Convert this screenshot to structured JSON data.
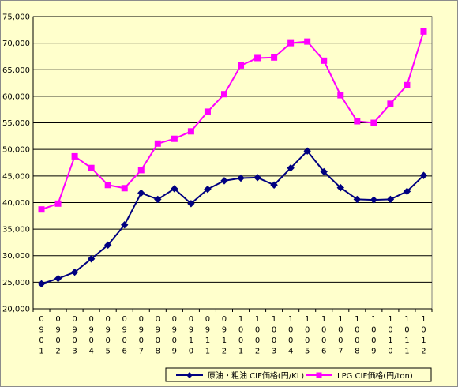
{
  "chart_data": {
    "type": "line",
    "title": "",
    "xlabel": "",
    "ylabel": "",
    "ylim": [
      20000,
      75000
    ],
    "ytick_step": 5000,
    "grid": true,
    "legend_placement": "bottom",
    "categories": [
      "0901",
      "0902",
      "0903",
      "0904",
      "0905",
      "0906",
      "0907",
      "0908",
      "0909",
      "0910",
      "0911",
      "0912",
      "1001",
      "1002",
      "1003",
      "1004",
      "1005",
      "1006",
      "1007",
      "1008",
      "1009",
      "1010",
      "1011",
      "1012"
    ],
    "series": [
      {
        "name": "原油・粗油 CIF価格(円/KL)",
        "color": "#000080",
        "marker": "diamond",
        "values": [
          24700,
          25700,
          26900,
          29400,
          32000,
          35800,
          41800,
          40600,
          42600,
          39800,
          42500,
          44100,
          44600,
          44700,
          43300,
          46500,
          49700,
          45800,
          42800,
          40600,
          40500,
          40600,
          42100,
          45100
        ]
      },
      {
        "name": "LPG CIF価格(円/ton)",
        "color": "#ff00ff",
        "marker": "square",
        "values": [
          38700,
          39800,
          48700,
          46500,
          43300,
          42700,
          46100,
          51100,
          52000,
          53400,
          57100,
          60400,
          65800,
          67200,
          67300,
          70000,
          70300,
          66700,
          60200,
          55300,
          55000,
          58600,
          62100,
          72200
        ]
      }
    ]
  },
  "colors": {
    "background": "#ffffcc",
    "plot_background": "#ffffcc",
    "grid": "#000000"
  }
}
